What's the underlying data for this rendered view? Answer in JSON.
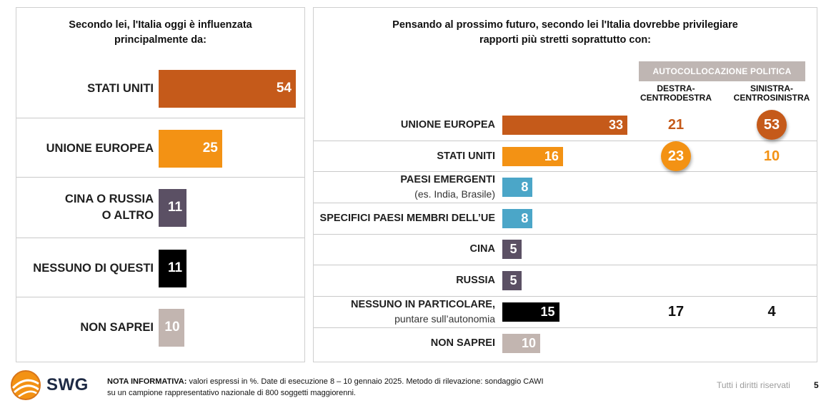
{
  "colors": {
    "orange_dark": "#c55a1a",
    "orange_light": "#f39214",
    "blue": "#4ba6c8",
    "purple": "#5b5064",
    "black": "#000000",
    "grey": "#c2b5b0",
    "header_grey": "#bfb6b3"
  },
  "left_title_line1": "Secondo lei, l'Italia oggi è influenzata",
  "left_title_line2": "principalmente da:",
  "right_title_line1": "Pensando al prossimo futuro, secondo lei l'Italia dovrebbe privilegiare",
  "right_title_line2": "rapporti più stretti soprattutto con:",
  "autocollocazione": "AUTOCOLLOCAZIONE POLITICA",
  "col1_line1": "DESTRA-",
  "col1_line2": "CENTRODESTRA",
  "col2_line1": "SINISTRA-",
  "col2_line2": "CENTROSINISTRA",
  "footer_label": "NOTA INFORMATIVA:",
  "footer_text1": "valori espressi in %. Date di esecuzione 8 – 10 gennaio 2025. Metodo di rilevazione: sondaggio CAWI",
  "footer_text2": "su un campione rappresentativo nazionale di 800 soggetti maggiorenni.",
  "rights": "Tutti i diritti riservati",
  "page_number": "5",
  "logo_text": "SWG",
  "chart_data": [
    {
      "type": "bar",
      "title": "Secondo lei, l'Italia oggi è influenzata principalmente da:",
      "categories": [
        {
          "line1": "STATI UNITI",
          "line2": ""
        },
        {
          "line1": "UNIONE EUROPEA",
          "line2": ""
        },
        {
          "line1": "CINA O RUSSIA",
          "line2": "O ALTRO"
        },
        {
          "line1": "NESSUNO DI QUESTI",
          "line2": ""
        },
        {
          "line1": "NON SAPREI",
          "line2": ""
        }
      ],
      "values": [
        54,
        25,
        11,
        11,
        10
      ],
      "value_labels": [
        "54",
        "25",
        "11",
        "11",
        "10"
      ],
      "bar_colors": [
        "#c55a1a",
        "#f39214",
        "#5b5064",
        "#000000",
        "#c2b5b0"
      ],
      "xlim": [
        0,
        54
      ]
    },
    {
      "type": "table",
      "title": "Pensando al prossimo futuro, secondo lei l'Italia dovrebbe privilegiare rapporti più stretti soprattutto con:",
      "categories": [
        {
          "line1": "UNIONE EUROPEA",
          "line2": ""
        },
        {
          "line1": "STATI UNITI",
          "line2": ""
        },
        {
          "line1": "PAESI EMERGENTI",
          "line2": "(es. India, Brasile)"
        },
        {
          "line1": "SPECIFICI PAESI MEMBRI DELL’UE",
          "line2": ""
        },
        {
          "line1": "CINA",
          "line2": ""
        },
        {
          "line1": "RUSSIA",
          "line2": ""
        },
        {
          "line1": "NESSUNO IN PARTICOLARE,",
          "line2": "puntare sull’autonomia"
        },
        {
          "line1": "NON SAPREI",
          "line2": ""
        }
      ],
      "values": [
        33,
        16,
        8,
        8,
        5,
        5,
        15,
        10
      ],
      "value_labels": [
        "33",
        "16",
        "8",
        "8",
        "5",
        "5",
        "15",
        "10"
      ],
      "bar_colors": [
        "#c55a1a",
        "#f39214",
        "#4ba6c8",
        "#4ba6c8",
        "#5b5064",
        "#5b5064",
        "#000000",
        "#c2b5b0"
      ],
      "xlim": [
        0,
        33
      ],
      "group_header": "AUTOCOLLOCAZIONE POLITICA",
      "series": [
        {
          "name": "DESTRA-CENTRODESTRA",
          "values": [
            "21",
            "23",
            "",
            "",
            "",
            "",
            "17",
            ""
          ],
          "colors": [
            "#c55a1a",
            "#f39214",
            "",
            "",
            "",
            "",
            "#111111",
            ""
          ],
          "highlight": [
            false,
            true,
            false,
            false,
            false,
            false,
            false,
            false
          ]
        },
        {
          "name": "SINISTRA-CENTROSINISTRA",
          "values": [
            "53",
            "10",
            "",
            "",
            "",
            "",
            "4",
            ""
          ],
          "colors": [
            "#c55a1a",
            "#f39214",
            "",
            "",
            "",
            "",
            "#111111",
            ""
          ],
          "highlight": [
            true,
            false,
            false,
            false,
            false,
            false,
            false,
            false
          ]
        }
      ]
    }
  ]
}
